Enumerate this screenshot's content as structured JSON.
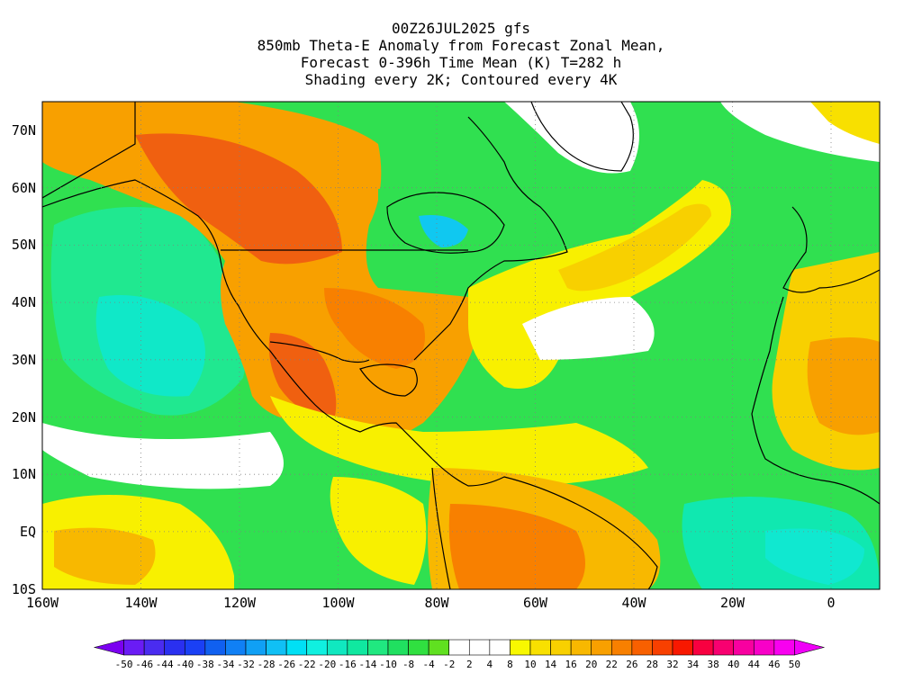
{
  "title_lines": [
    "00Z26JUL2025 gfs",
    "850mb Theta-E Anomaly from Forecast Zonal Mean,",
    "Forecast 0-396h Time Mean (K) T=282 h",
    "Shading every 2K; Contoured every 4K"
  ],
  "lat_labels": [
    "70N",
    "60N",
    "50N",
    "40N",
    "30N",
    "20N",
    "10N",
    "EQ",
    "10S"
  ],
  "lon_labels": [
    "160W",
    "140W",
    "120W",
    "100W",
    "80W",
    "60W",
    "40W",
    "20W",
    "0"
  ],
  "colorbar": {
    "labels": [
      "-50",
      "-46",
      "-44",
      "-40",
      "-38",
      "-34",
      "-32",
      "-28",
      "-26",
      "-22",
      "-20",
      "-16",
      "-14",
      "-10",
      "-8",
      "-4",
      "-2",
      "2",
      "4",
      "8",
      "10",
      "14",
      "16",
      "20",
      "22",
      "26",
      "28",
      "32",
      "34",
      "38",
      "40",
      "44",
      "46",
      "50"
    ],
    "colors": [
      "#7b00f0",
      "#6a1cf5",
      "#4a2cf0",
      "#2a30f0",
      "#1a40f5",
      "#1060f0",
      "#1080f5",
      "#10a0f5",
      "#10c0f5",
      "#00e0f5",
      "#10f0e0",
      "#10e8c0",
      "#10e8a0",
      "#20e880",
      "#20e060",
      "#30e040",
      "#60e020",
      "#ffffff",
      "#ffffff",
      "#ffffff",
      "#f8f800",
      "#f8e000",
      "#f8d000",
      "#f8b800",
      "#f8a000",
      "#f88000",
      "#f86000",
      "#f84000",
      "#f81800",
      "#f80040",
      "#f80070",
      "#f800a0",
      "#f800c8",
      "#f800f0",
      "#f000f8"
    ]
  },
  "colors": {
    "warm": "#f8a000",
    "hot": "#f05010",
    "yellow": "#f8f000",
    "green": "#30e050",
    "teal": "#10e8b0",
    "white": "#ffffff",
    "coast": "#000000"
  }
}
